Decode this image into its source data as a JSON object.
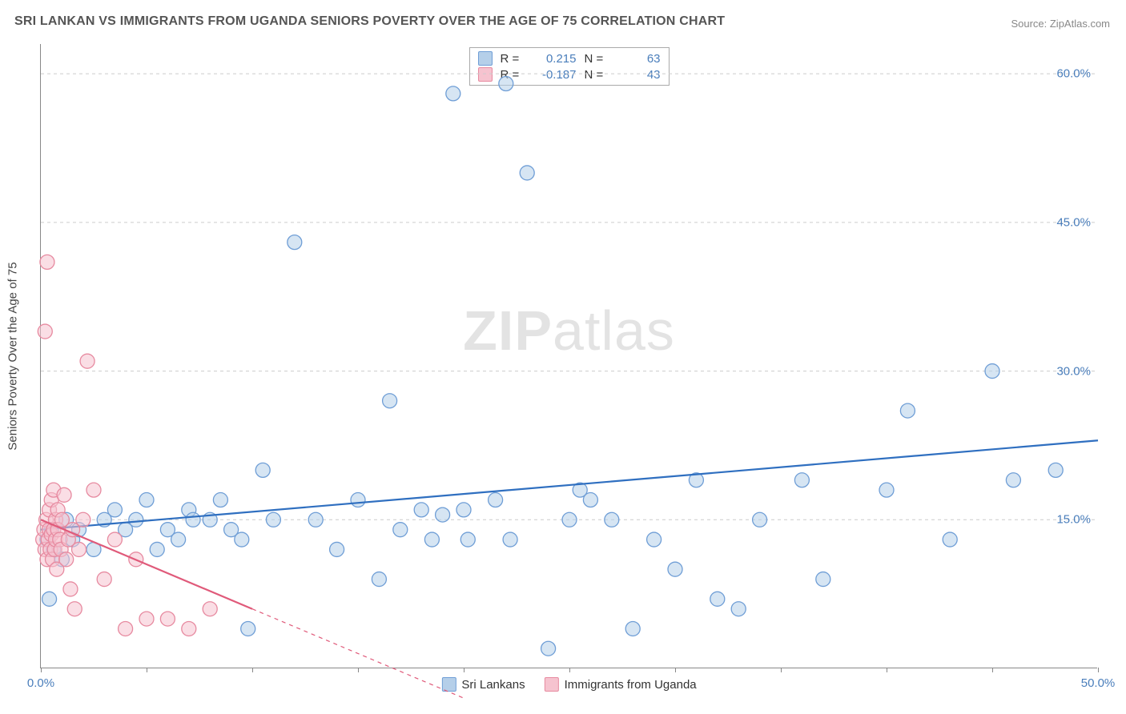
{
  "title": "SRI LANKAN VS IMMIGRANTS FROM UGANDA SENIORS POVERTY OVER THE AGE OF 75 CORRELATION CHART",
  "source": "Source: ZipAtlas.com",
  "watermark": "ZIPatlas",
  "ylabel": "Seniors Poverty Over the Age of 75",
  "chart": {
    "type": "scatter",
    "xlim": [
      0,
      50
    ],
    "ylim": [
      0,
      63
    ],
    "xticks": [
      0,
      5,
      10,
      15,
      20,
      25,
      30,
      35,
      40,
      45,
      50
    ],
    "xtick_labels_shown": {
      "0": "0.0%",
      "50": "50.0%"
    },
    "yticks": [
      15,
      30,
      45,
      60
    ],
    "ytick_labels": {
      "15": "15.0%",
      "30": "30.0%",
      "45": "45.0%",
      "60": "60.0%"
    },
    "grid_color": "#cccccc",
    "background_color": "#ffffff",
    "axis_color": "#888888",
    "tick_label_color": "#4a7ebb",
    "title_color": "#555555",
    "title_fontsize": 16,
    "label_fontsize": 15,
    "marker_radius": 9,
    "marker_opacity": 0.55,
    "line_width": 2.2
  },
  "series": [
    {
      "name": "Sri Lankans",
      "color_fill": "#b5cfe9",
      "color_stroke": "#6f9ed6",
      "line_color": "#2f6fc0",
      "R": "0.215",
      "N": "63",
      "regression": {
        "x1": 0,
        "y1": 14.0,
        "x2": 50,
        "y2": 23.0
      },
      "points": [
        [
          0.3,
          13
        ],
        [
          0.5,
          14
        ],
        [
          0.4,
          7
        ],
        [
          0.6,
          12
        ],
        [
          1.0,
          11
        ],
        [
          1.2,
          15
        ],
        [
          1.5,
          13
        ],
        [
          1.8,
          14
        ],
        [
          2.5,
          12
        ],
        [
          3.0,
          15
        ],
        [
          3.5,
          16
        ],
        [
          4.0,
          14
        ],
        [
          4.5,
          15
        ],
        [
          5.0,
          17
        ],
        [
          5.5,
          12
        ],
        [
          6.0,
          14
        ],
        [
          6.5,
          13
        ],
        [
          7.0,
          16
        ],
        [
          7.2,
          15
        ],
        [
          8.0,
          15
        ],
        [
          8.5,
          17
        ],
        [
          9.0,
          14
        ],
        [
          9.5,
          13
        ],
        [
          9.8,
          4
        ],
        [
          10.5,
          20
        ],
        [
          11.0,
          15
        ],
        [
          12.0,
          43
        ],
        [
          13.0,
          15
        ],
        [
          14.0,
          12
        ],
        [
          15.0,
          17
        ],
        [
          16.0,
          9
        ],
        [
          16.5,
          27
        ],
        [
          17.0,
          14
        ],
        [
          18.0,
          16
        ],
        [
          18.5,
          13
        ],
        [
          19.0,
          15.5
        ],
        [
          19.5,
          58
        ],
        [
          20.0,
          16
        ],
        [
          20.2,
          13
        ],
        [
          21.5,
          17
        ],
        [
          22.0,
          59
        ],
        [
          22.2,
          13
        ],
        [
          23.0,
          50
        ],
        [
          24.0,
          2
        ],
        [
          25.0,
          15
        ],
        [
          25.5,
          18
        ],
        [
          26.0,
          17
        ],
        [
          27.0,
          15
        ],
        [
          28.0,
          4
        ],
        [
          29.0,
          13
        ],
        [
          30.0,
          10
        ],
        [
          31.0,
          19
        ],
        [
          32.0,
          7
        ],
        [
          33.0,
          6
        ],
        [
          34.0,
          15
        ],
        [
          36.0,
          19
        ],
        [
          37.0,
          9
        ],
        [
          40.0,
          18
        ],
        [
          41.0,
          26
        ],
        [
          43.0,
          13
        ],
        [
          45.0,
          30
        ],
        [
          46.0,
          19
        ],
        [
          48.0,
          20
        ]
      ]
    },
    {
      "name": "Immigrants from Uganda",
      "color_fill": "#f6c3cf",
      "color_stroke": "#e78aa0",
      "line_color": "#e05a7a",
      "R": "-0.187",
      "N": "43",
      "regression": {
        "x1": 0,
        "y1": 15.0,
        "x2": 10,
        "y2": 6.0
      },
      "regression_dash": {
        "x1": 10,
        "y1": 6.0,
        "x2": 20,
        "y2": -3.0
      },
      "points": [
        [
          0.1,
          13
        ],
        [
          0.15,
          14
        ],
        [
          0.2,
          12
        ],
        [
          0.2,
          34
        ],
        [
          0.25,
          15
        ],
        [
          0.3,
          11
        ],
        [
          0.3,
          41
        ],
        [
          0.35,
          13
        ],
        [
          0.4,
          16
        ],
        [
          0.4,
          14
        ],
        [
          0.45,
          12
        ],
        [
          0.5,
          13.5
        ],
        [
          0.5,
          17
        ],
        [
          0.55,
          11
        ],
        [
          0.6,
          14
        ],
        [
          0.6,
          18
        ],
        [
          0.65,
          12
        ],
        [
          0.7,
          13
        ],
        [
          0.7,
          15
        ],
        [
          0.75,
          10
        ],
        [
          0.8,
          14
        ],
        [
          0.8,
          16
        ],
        [
          0.9,
          13
        ],
        [
          0.95,
          12
        ],
        [
          1.0,
          15
        ],
        [
          1.1,
          17.5
        ],
        [
          1.2,
          11
        ],
        [
          1.3,
          13
        ],
        [
          1.4,
          8
        ],
        [
          1.5,
          14
        ],
        [
          1.6,
          6
        ],
        [
          1.8,
          12
        ],
        [
          2.0,
          15
        ],
        [
          2.2,
          31
        ],
        [
          2.5,
          18
        ],
        [
          3.0,
          9
        ],
        [
          3.5,
          13
        ],
        [
          4.0,
          4
        ],
        [
          4.5,
          11
        ],
        [
          5.0,
          5
        ],
        [
          6.0,
          5
        ],
        [
          7.0,
          4
        ],
        [
          8.0,
          6
        ]
      ]
    }
  ],
  "legend_top": [
    {
      "swatch_fill": "#b5cfe9",
      "swatch_stroke": "#6f9ed6",
      "R_label": "R =",
      "R_val": "0.215",
      "N_label": "N =",
      "N_val": "63"
    },
    {
      "swatch_fill": "#f6c3cf",
      "swatch_stroke": "#e78aa0",
      "R_label": "R =",
      "R_val": "-0.187",
      "N_label": "N =",
      "N_val": "43"
    }
  ],
  "legend_bottom": [
    {
      "swatch_fill": "#b5cfe9",
      "swatch_stroke": "#6f9ed6",
      "label": "Sri Lankans"
    },
    {
      "swatch_fill": "#f6c3cf",
      "swatch_stroke": "#e78aa0",
      "label": "Immigrants from Uganda"
    }
  ]
}
